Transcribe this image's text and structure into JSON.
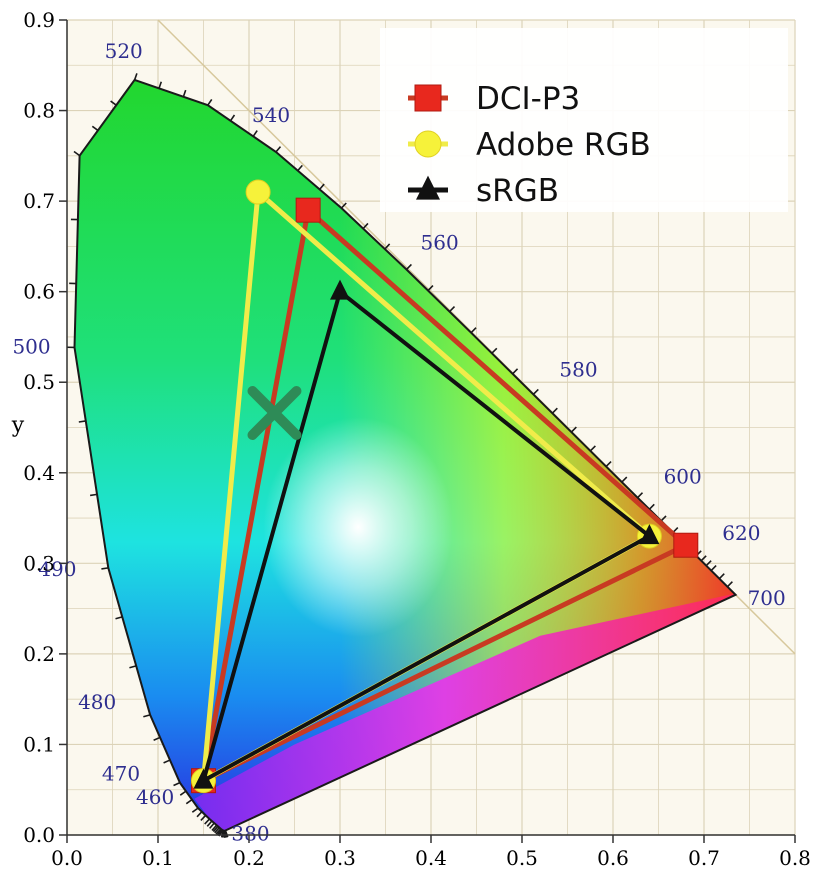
{
  "chart_data": {
    "type": "scatter",
    "title": "",
    "xlabel": "",
    "ylabel": "y",
    "xlim": [
      0,
      0.8
    ],
    "ylim": [
      0,
      0.9
    ],
    "x_ticks": [
      "0.0",
      "0.1",
      "0.2",
      "0.3",
      "0.4",
      "0.5",
      "0.6",
      "0.7",
      "0.8"
    ],
    "y_ticks": [
      "0.0",
      "0.1",
      "0.2",
      "0.3",
      "0.4",
      "0.5",
      "0.6",
      "0.7",
      "0.8",
      "0.9"
    ],
    "grid": true,
    "legend_position": "top-right",
    "spectral_locus": [
      [
        0.1741,
        0.005
      ],
      [
        0.1738,
        0.0049
      ],
      [
        0.1733,
        0.0048
      ],
      [
        0.1726,
        0.0048
      ],
      [
        0.1714,
        0.0051
      ],
      [
        0.1689,
        0.0069
      ],
      [
        0.1644,
        0.0109
      ],
      [
        0.1566,
        0.0177
      ],
      [
        0.144,
        0.0297
      ],
      [
        0.1241,
        0.0578
      ],
      [
        0.0913,
        0.1327
      ],
      [
        0.0454,
        0.295
      ],
      [
        0.0082,
        0.5384
      ],
      [
        0.0139,
        0.7502
      ],
      [
        0.0743,
        0.8338
      ],
      [
        0.1547,
        0.8059
      ],
      [
        0.2296,
        0.7543
      ],
      [
        0.3016,
        0.6923
      ],
      [
        0.3731,
        0.6245
      ],
      [
        0.4441,
        0.5547
      ],
      [
        0.5125,
        0.4866
      ],
      [
        0.5752,
        0.4242
      ],
      [
        0.627,
        0.3725
      ],
      [
        0.6658,
        0.334
      ],
      [
        0.6915,
        0.3083
      ],
      [
        0.7079,
        0.292
      ],
      [
        0.7347,
        0.2653
      ]
    ],
    "wavelength_labels": [
      {
        "label": "380",
        "x": 0.1741,
        "y": 0.005
      },
      {
        "label": "460",
        "x": 0.144,
        "y": 0.0297
      },
      {
        "label": "470",
        "x": 0.1241,
        "y": 0.0578
      },
      {
        "label": "480",
        "x": 0.0913,
        "y": 0.1327
      },
      {
        "label": "490",
        "x": 0.0454,
        "y": 0.295
      },
      {
        "label": "500",
        "x": 0.0082,
        "y": 0.5384
      },
      {
        "label": "520",
        "x": 0.0743,
        "y": 0.8338
      },
      {
        "label": "540",
        "x": 0.2296,
        "y": 0.7543
      },
      {
        "label": "560",
        "x": 0.3731,
        "y": 0.6245
      },
      {
        "label": "580",
        "x": 0.5125,
        "y": 0.4866
      },
      {
        "label": "600",
        "x": 0.627,
        "y": 0.3725
      },
      {
        "label": "620",
        "x": 0.6915,
        "y": 0.3083
      },
      {
        "label": "700",
        "x": 0.7347,
        "y": 0.2653
      }
    ],
    "series": [
      {
        "name": "DCI-P3",
        "marker": "square",
        "color": "#e8281e",
        "points": [
          [
            0.68,
            0.32
          ],
          [
            0.265,
            0.69
          ],
          [
            0.15,
            0.06
          ]
        ]
      },
      {
        "name": "Adobe RGB",
        "marker": "circle",
        "color": "#f6f23a",
        "points": [
          [
            0.64,
            0.33
          ],
          [
            0.21,
            0.71
          ],
          [
            0.15,
            0.06
          ]
        ]
      },
      {
        "name": "sRGB",
        "marker": "triangle",
        "color": "#111111",
        "points": [
          [
            0.64,
            0.33
          ],
          [
            0.3,
            0.6
          ],
          [
            0.15,
            0.06
          ]
        ]
      }
    ],
    "white_point_marker": {
      "x": 0.228,
      "y": 0.466,
      "color": "#2e8b57"
    },
    "colors": {
      "background": "#fbf8ee",
      "grid": "#dcd3b8",
      "axis": "#333333"
    }
  }
}
